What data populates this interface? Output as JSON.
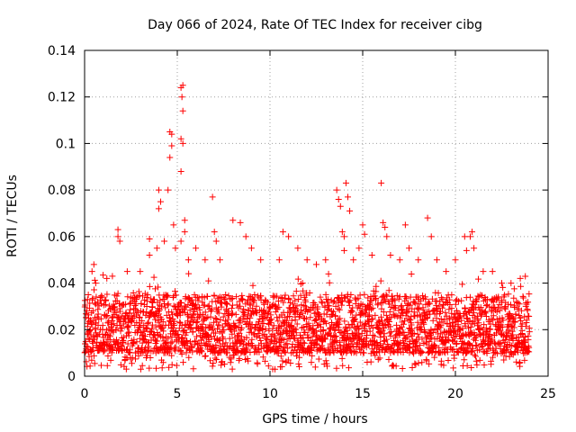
{
  "chart_data": {
    "type": "scatter",
    "title": "Day 066 of 2024, Rate Of TEC Index for receiver cibg",
    "xlabel": "GPS time / hours",
    "ylabel": "ROTI / TECUs",
    "xlim": [
      0,
      25
    ],
    "ylim": [
      0,
      0.14
    ],
    "xticks": [
      0,
      5,
      10,
      15,
      20,
      25
    ],
    "yticks": [
      0,
      0.02,
      0.04,
      0.06,
      0.08,
      0.1,
      0.12,
      0.14
    ],
    "ytick_labels": [
      "0",
      "0.02",
      "0.04",
      "0.06",
      "0.08",
      "0.1",
      "0.12",
      "0.14"
    ],
    "grid": true,
    "marker": "+",
    "color": "#ff0000",
    "series": [
      {
        "name": "ROTI",
        "note": "dense band of ~0.005-0.04 TECU/s over 0-24 h with sparse outliers",
        "points": [
          [
            0.2,
            0.035
          ],
          [
            0.4,
            0.045
          ],
          [
            0.5,
            0.048
          ],
          [
            0.6,
            0.04
          ],
          [
            1.2,
            0.042
          ],
          [
            1.5,
            0.043
          ],
          [
            1.8,
            0.063
          ],
          [
            1.8,
            0.06
          ],
          [
            1.9,
            0.058
          ],
          [
            2.3,
            0.045
          ],
          [
            3.0,
            0.045
          ],
          [
            3.5,
            0.052
          ],
          [
            3.5,
            0.059
          ],
          [
            3.9,
            0.055
          ],
          [
            4.0,
            0.072
          ],
          [
            4.0,
            0.08
          ],
          [
            4.1,
            0.075
          ],
          [
            4.3,
            0.058
          ],
          [
            4.5,
            0.08
          ],
          [
            4.6,
            0.105
          ],
          [
            4.6,
            0.094
          ],
          [
            4.7,
            0.099
          ],
          [
            4.7,
            0.104
          ],
          [
            4.8,
            0.065
          ],
          [
            4.9,
            0.055
          ],
          [
            5.2,
            0.124
          ],
          [
            5.25,
            0.12
          ],
          [
            5.3,
            0.114
          ],
          [
            5.3,
            0.125
          ],
          [
            5.2,
            0.102
          ],
          [
            5.3,
            0.1
          ],
          [
            5.2,
            0.088
          ],
          [
            5.4,
            0.067
          ],
          [
            5.4,
            0.062
          ],
          [
            5.2,
            0.058
          ],
          [
            5.6,
            0.05
          ],
          [
            6.0,
            0.055
          ],
          [
            6.5,
            0.05
          ],
          [
            6.9,
            0.077
          ],
          [
            7.0,
            0.062
          ],
          [
            7.1,
            0.058
          ],
          [
            7.3,
            0.05
          ],
          [
            8.0,
            0.067
          ],
          [
            8.4,
            0.066
          ],
          [
            8.7,
            0.06
          ],
          [
            9.0,
            0.055
          ],
          [
            9.5,
            0.05
          ],
          [
            10.5,
            0.05
          ],
          [
            10.7,
            0.062
          ],
          [
            11.0,
            0.06
          ],
          [
            11.5,
            0.055
          ],
          [
            12.0,
            0.05
          ],
          [
            12.5,
            0.048
          ],
          [
            13.0,
            0.05
          ],
          [
            13.6,
            0.08
          ],
          [
            13.7,
            0.076
          ],
          [
            13.8,
            0.073
          ],
          [
            13.9,
            0.062
          ],
          [
            14.0,
            0.06
          ],
          [
            14.1,
            0.083
          ],
          [
            14.2,
            0.077
          ],
          [
            14.3,
            0.071
          ],
          [
            14.0,
            0.054
          ],
          [
            14.5,
            0.05
          ],
          [
            14.8,
            0.055
          ],
          [
            15.0,
            0.065
          ],
          [
            15.1,
            0.061
          ],
          [
            15.5,
            0.052
          ],
          [
            16.0,
            0.083
          ],
          [
            16.1,
            0.066
          ],
          [
            16.2,
            0.064
          ],
          [
            16.3,
            0.06
          ],
          [
            16.5,
            0.052
          ],
          [
            17.0,
            0.05
          ],
          [
            17.3,
            0.065
          ],
          [
            17.5,
            0.055
          ],
          [
            18.0,
            0.05
          ],
          [
            18.5,
            0.068
          ],
          [
            18.7,
            0.06
          ],
          [
            19.0,
            0.05
          ],
          [
            19.5,
            0.045
          ],
          [
            20.0,
            0.05
          ],
          [
            20.5,
            0.06
          ],
          [
            20.6,
            0.054
          ],
          [
            20.8,
            0.06
          ],
          [
            20.9,
            0.062
          ],
          [
            21.0,
            0.055
          ],
          [
            21.5,
            0.045
          ],
          [
            22.0,
            0.045
          ],
          [
            22.5,
            0.04
          ],
          [
            23.0,
            0.04
          ],
          [
            23.5,
            0.042
          ],
          [
            23.8,
            0.03
          ]
        ],
        "band": {
          "x": [
            0,
            24
          ],
          "typical_low": 0.01,
          "typical_high": 0.035,
          "min": 0.003
        }
      }
    ]
  }
}
